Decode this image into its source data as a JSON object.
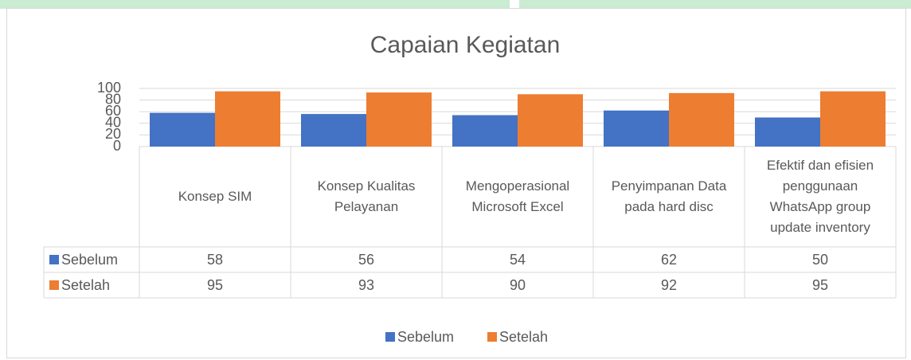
{
  "chart_data": {
    "type": "bar",
    "title": "Capaian Kegiatan",
    "categories": [
      "Konsep SIM",
      "Konsep Kualitas Pelayanan",
      "Mengoperasional Microsoft Excel",
      "Penyimpanan Data pada hard disc",
      "Efektif dan efisien penggunaan WhatsApp group update inventory"
    ],
    "series": [
      {
        "name": "Sebelum",
        "color": "#4472c4",
        "values": [
          58,
          56,
          54,
          62,
          50
        ]
      },
      {
        "name": "Setelah",
        "color": "#ed7d31",
        "values": [
          95,
          93,
          90,
          92,
          95
        ]
      }
    ],
    "ylim": [
      0,
      100
    ],
    "yticks": [
      0,
      20,
      40,
      60,
      80,
      100
    ],
    "grid": true,
    "legend": "bottom",
    "data_table": true
  }
}
